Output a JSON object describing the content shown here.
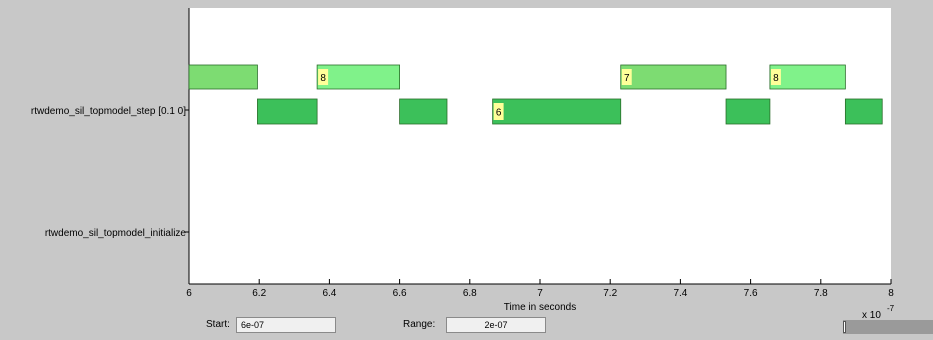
{
  "chart_data": {
    "type": "timeline",
    "xlabel": "Time in seconds",
    "x_scale_label": "x 10",
    "x_scale_exponent": "-7",
    "xlim": [
      6,
      8
    ],
    "xticks": [
      6,
      6.2,
      6.4,
      6.6,
      6.8,
      7,
      7.2,
      7.4,
      7.6,
      7.8,
      8
    ],
    "xtick_labels": [
      "6",
      "6.2",
      "6.4",
      "6.6",
      "6.8",
      "7",
      "7.2",
      "7.4",
      "7.6",
      "7.8",
      "8"
    ],
    "rows": [
      {
        "label": "rtwdemo_sil_topmodel_step [0.1 0]"
      },
      {
        "label": "rtwdemo_sil_topmodel_initialize"
      }
    ],
    "upper_bars": [
      {
        "start": 6.0,
        "end": 6.195,
        "badge": "",
        "color": "#7ddc72"
      },
      {
        "start": 6.365,
        "end": 6.6,
        "badge": "8",
        "color": "#80f28a"
      },
      {
        "start": 7.23,
        "end": 7.53,
        "badge": "7",
        "color": "#7ddc72"
      },
      {
        "start": 7.655,
        "end": 7.87,
        "badge": "8",
        "color": "#80f28a"
      }
    ],
    "lower_bars": [
      {
        "start": 6.195,
        "end": 6.365,
        "badge": "",
        "color": "#3cc05a"
      },
      {
        "start": 6.6,
        "end": 6.735,
        "badge": "",
        "color": "#3cc05a"
      },
      {
        "start": 6.865,
        "end": 7.23,
        "badge": "6",
        "color": "#3cc05a"
      },
      {
        "start": 7.53,
        "end": 7.655,
        "badge": "",
        "color": "#3cc05a"
      },
      {
        "start": 7.87,
        "end": 7.975,
        "badge": "",
        "color": "#3cc05a"
      }
    ],
    "badge_color": "#ffff99"
  },
  "controls": {
    "start_label": "Start:",
    "start_value": "6e-07",
    "range_label": "Range:",
    "range_value": "2e-07"
  }
}
